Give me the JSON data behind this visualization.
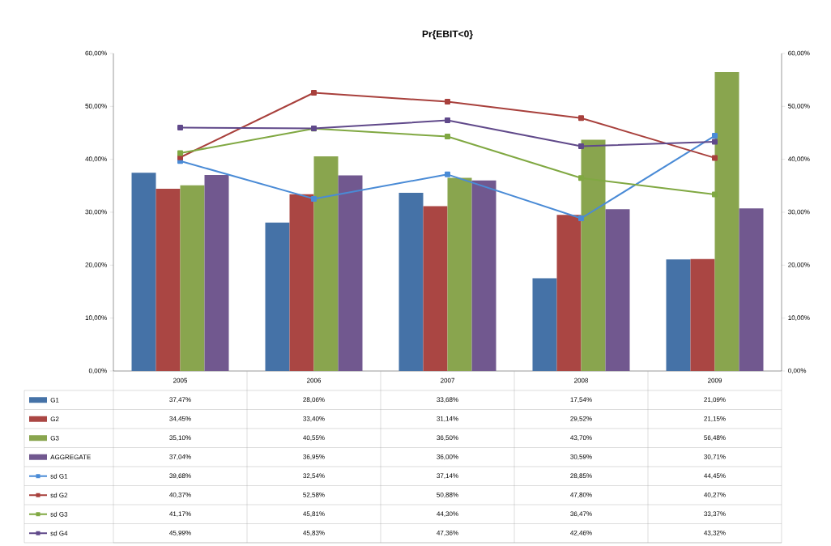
{
  "chart_data": {
    "type": "bar",
    "title": "Pr{EBIT<0}",
    "categories": [
      "2005",
      "2006",
      "2007",
      "2008",
      "2009"
    ],
    "ylim": [
      0,
      60
    ],
    "yticks": [
      {
        "value": 0,
        "label": "0,00%"
      },
      {
        "value": 10,
        "label": "10,00%"
      },
      {
        "value": 20,
        "label": "20,00%"
      },
      {
        "value": 30,
        "label": "30,00%"
      },
      {
        "value": 40,
        "label": "40,00%"
      },
      {
        "value": 50,
        "label": "50,00%"
      },
      {
        "value": 60,
        "label": "60,00%"
      }
    ],
    "y2lim": [
      0,
      60
    ],
    "y2ticks": [
      {
        "value": 0,
        "label": "0,00%"
      },
      {
        "value": 10,
        "label": "10,00%"
      },
      {
        "value": 20,
        "label": "20,00%"
      },
      {
        "value": 30,
        "label": "30,00%"
      },
      {
        "value": 40,
        "label": "40,00%"
      },
      {
        "value": 50,
        "label": "50,00%"
      },
      {
        "value": 60,
        "label": "60,00%"
      }
    ],
    "legend": "bottom",
    "marker": "square",
    "series": [
      {
        "name": "G1",
        "color": "#4572a7",
        "values": [
          37.47,
          28.06,
          33.68,
          17.54,
          21.09
        ],
        "value_labels": [
          "37,47%",
          "28,06%",
          "33,68%",
          "17,54%",
          "21,09%"
        ]
      },
      {
        "name": "G2",
        "color": "#aa4643",
        "values": [
          34.45,
          33.4,
          31.14,
          29.52,
          21.15
        ],
        "value_labels": [
          "34,45%",
          "33,40%",
          "31,14%",
          "29,52%",
          "21,15%"
        ]
      },
      {
        "name": "G3",
        "color": "#89a54e",
        "values": [
          35.1,
          40.55,
          36.5,
          43.7,
          56.48
        ],
        "value_labels": [
          "35,10%",
          "40,55%",
          "36,50%",
          "43,70%",
          "56,48%"
        ]
      },
      {
        "name": "AGGREGATE",
        "color": "#71588f",
        "values": [
          37.04,
          36.95,
          36.0,
          30.59,
          30.71
        ],
        "value_labels": [
          "37,04%",
          "36,95%",
          "36,00%",
          "30,59%",
          "30,71%"
        ]
      },
      {
        "name": "sd G1",
        "type": "line",
        "color": "#4a8bd6",
        "values": [
          39.68,
          32.54,
          37.14,
          28.85,
          44.45
        ],
        "value_labels": [
          "39,68%",
          "32,54%",
          "37,14%",
          "28,85%",
          "44,45%"
        ]
      },
      {
        "name": "sd G2",
        "type": "line",
        "color": "#a8403c",
        "values": [
          40.37,
          52.58,
          50.88,
          47.8,
          40.27
        ],
        "value_labels": [
          "40,37%",
          "52,58%",
          "50,88%",
          "47,80%",
          "40,27%"
        ]
      },
      {
        "name": "sd G3",
        "type": "line",
        "color": "#80a842",
        "values": [
          41.17,
          45.81,
          44.3,
          36.47,
          33.37
        ],
        "value_labels": [
          "41,17%",
          "45,81%",
          "44,30%",
          "36,47%",
          "33,37%"
        ]
      },
      {
        "name": "sd G4",
        "type": "line",
        "color": "#60498a",
        "values": [
          45.99,
          45.83,
          47.36,
          42.46,
          43.32
        ],
        "value_labels": [
          "45,99%",
          "45,83%",
          "47,36%",
          "42,46%",
          "43,32%"
        ]
      }
    ]
  }
}
